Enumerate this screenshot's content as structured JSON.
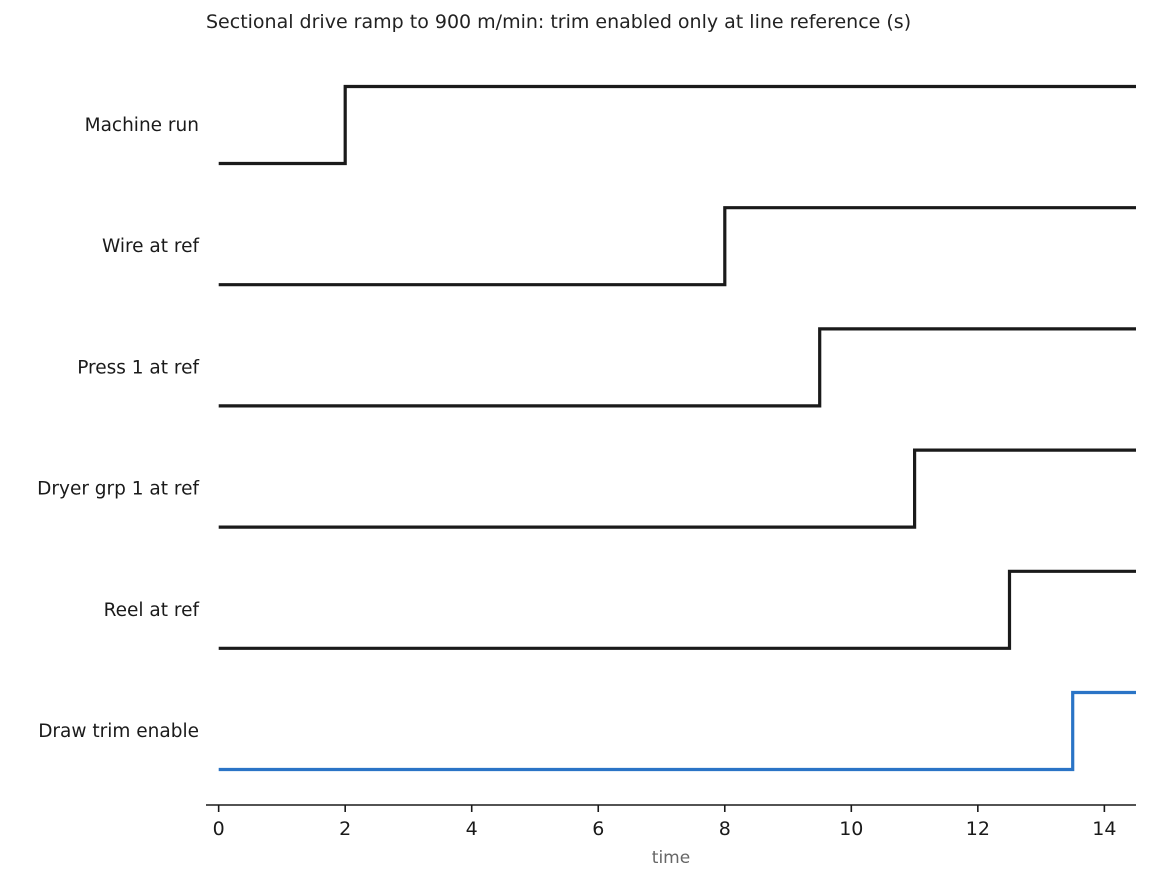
{
  "chart_data": {
    "type": "line",
    "subtype": "digital-timing",
    "title": "Sectional drive ramp to 900 m/min: trim enabled only at line reference (s)",
    "xlabel": "time",
    "ylabel": "",
    "xlim": [
      -0.2,
      14.5
    ],
    "xticks": [
      0,
      2,
      4,
      6,
      8,
      10,
      12,
      14
    ],
    "grid": false,
    "series": [
      {
        "name": "Machine run",
        "x": [
          0,
          2,
          14.5
        ],
        "values": [
          0,
          1,
          1
        ],
        "color": "#1a1a1a"
      },
      {
        "name": "Wire at ref",
        "x": [
          0,
          8,
          14.5
        ],
        "values": [
          0,
          1,
          1
        ],
        "color": "#1a1a1a"
      },
      {
        "name": "Press 1 at ref",
        "x": [
          0,
          9.5,
          14.5
        ],
        "values": [
          0,
          1,
          1
        ],
        "color": "#1a1a1a"
      },
      {
        "name": "Dryer grp 1 at ref",
        "x": [
          0,
          11,
          14.5
        ],
        "values": [
          0,
          1,
          1
        ],
        "color": "#1a1a1a"
      },
      {
        "name": "Reel at ref",
        "x": [
          0,
          12.5,
          14.5
        ],
        "values": [
          0,
          1,
          1
        ],
        "color": "#1a1a1a"
      },
      {
        "name": "Draw trim enable",
        "x": [
          0,
          13.5,
          14.5
        ],
        "values": [
          0,
          1,
          1
        ],
        "color": "#2a74c6"
      }
    ]
  }
}
